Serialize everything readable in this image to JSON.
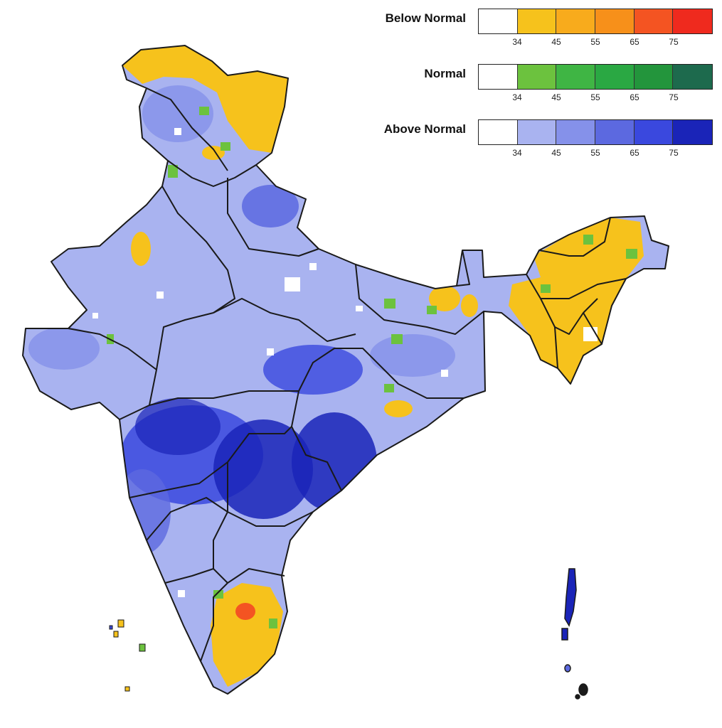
{
  "legend": [
    {
      "label": "Below Normal",
      "ticks": [
        "34",
        "45",
        "55",
        "65",
        "75"
      ],
      "colors": [
        "#ffffff",
        "#f6c21c",
        "#f8ab1c",
        "#f7901a",
        "#f45422",
        "#ef2a1e"
      ]
    },
    {
      "label": "Normal",
      "ticks": [
        "34",
        "45",
        "55",
        "65",
        "75"
      ],
      "colors": [
        "#ffffff",
        "#6cc23e",
        "#3fb544",
        "#2aa843",
        "#23953c",
        "#1d6a4d"
      ]
    },
    {
      "label": "Above Normal",
      "ticks": [
        "34",
        "45",
        "55",
        "65",
        "75"
      ],
      "colors": [
        "#ffffff",
        "#a9b3f0",
        "#8591ea",
        "#5c69e0",
        "#3a48de",
        "#1a24b8"
      ]
    }
  ],
  "map": {
    "colors": {
      "background": "#ffffff",
      "country_base": "#a9b3f0",
      "below_normal_region": "#f6c21c",
      "normal_region": "#6cc23e",
      "above_normal_strong": "#3a48de",
      "above_normal_darkest": "#1a24b8",
      "state_border": "#1a1a1a"
    },
    "icons": [
      "map-of-india"
    ]
  }
}
